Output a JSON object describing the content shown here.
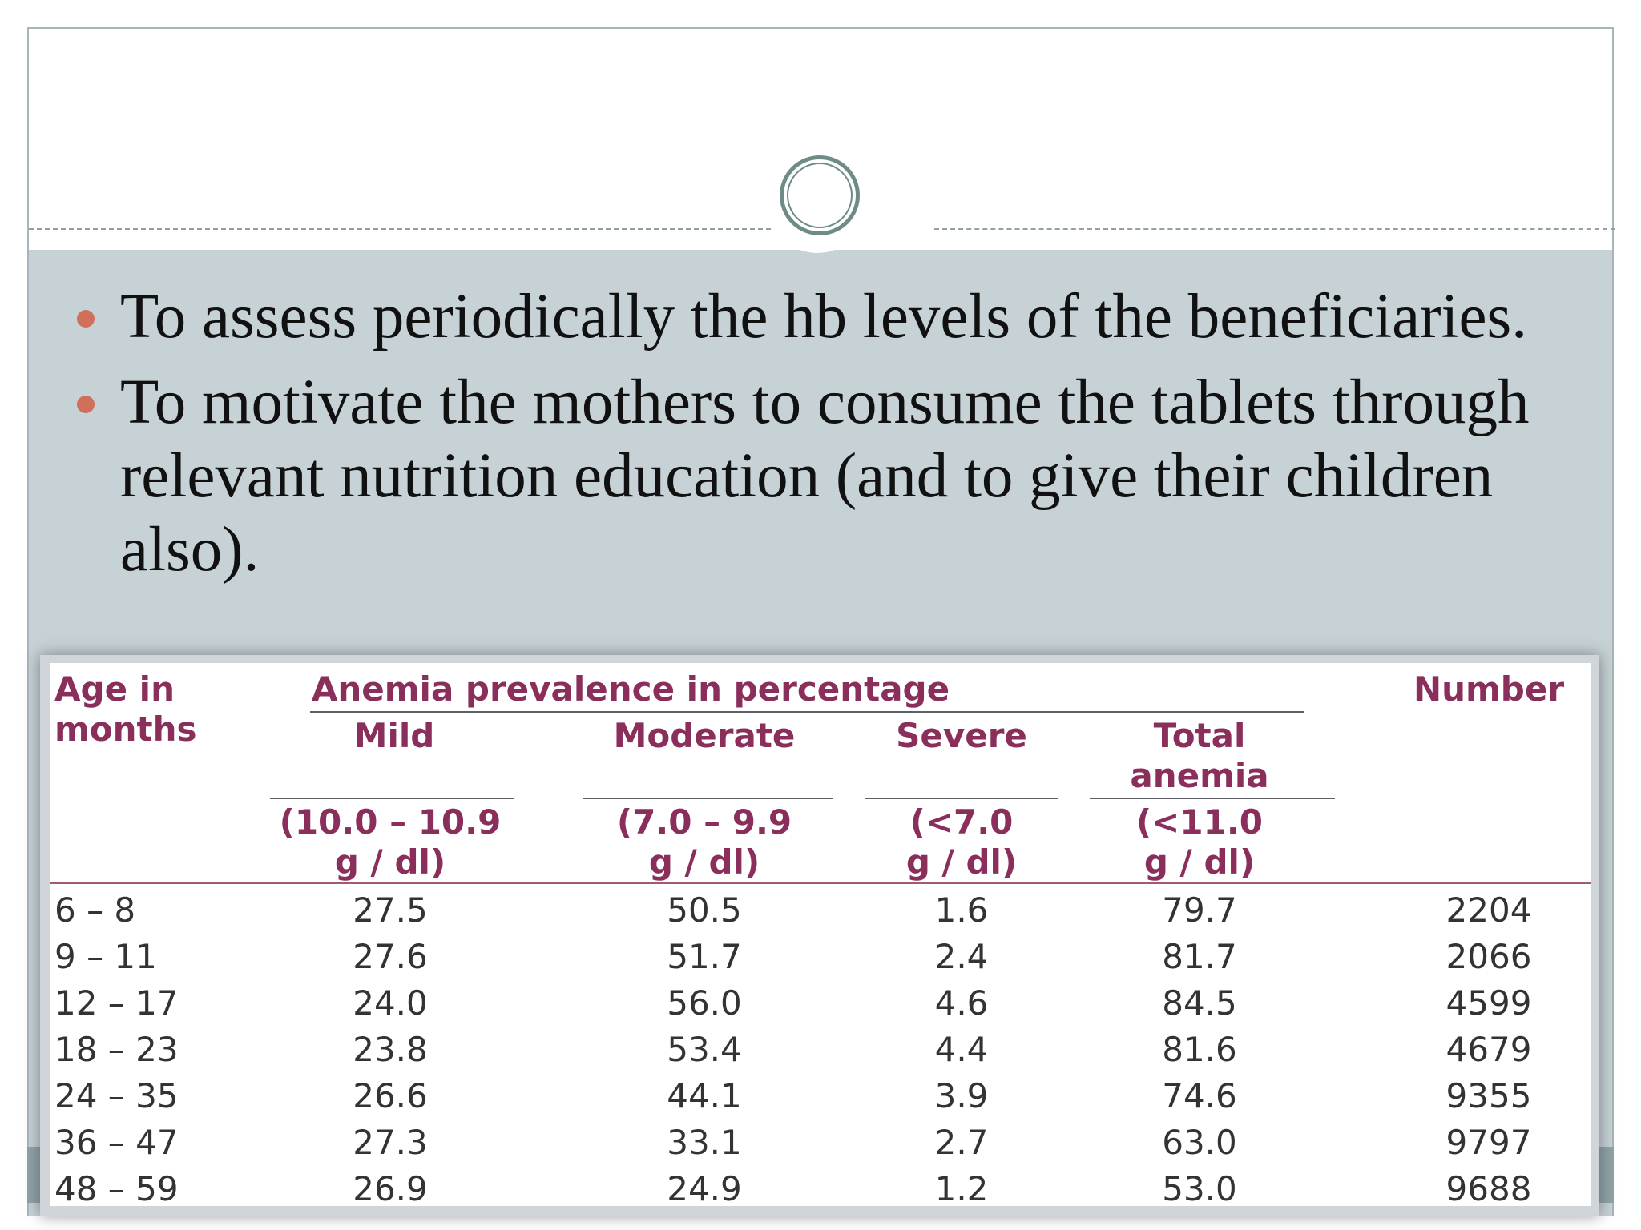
{
  "bullets": [
    "To assess periodically the hb levels of the beneficiaries.",
    "To motivate the mothers to consume the tablets through relevant nutrition education (and to give their children also)."
  ],
  "table": {
    "age_header_line1": "Age in",
    "age_header_line2": "months",
    "group_header": "Anemia prevalence in percentage",
    "number_header": "Number",
    "columns": [
      {
        "name": "Mild",
        "name2": "",
        "range1": "(10.0 – 10.9",
        "range2": "g / dl)"
      },
      {
        "name": "Moderate",
        "name2": "",
        "range1": "(7.0 – 9.9",
        "range2": "g / dl)"
      },
      {
        "name": "Severe",
        "name2": "",
        "range1": "(<7.0",
        "range2": "g / dl)"
      },
      {
        "name": "Total",
        "name2": "anemia",
        "range1": "(<11.0",
        "range2": "g / dl)"
      }
    ],
    "rows": [
      {
        "age": "6 – 8",
        "mild": "27.5",
        "moderate": "50.5",
        "severe": "1.6",
        "total": "79.7",
        "number": "2204"
      },
      {
        "age": "9 – 11",
        "mild": "27.6",
        "moderate": "51.7",
        "severe": "2.4",
        "total": "81.7",
        "number": "2066"
      },
      {
        "age": "12 – 17",
        "mild": "24.0",
        "moderate": "56.0",
        "severe": "4.6",
        "total": "84.5",
        "number": "4599"
      },
      {
        "age": "18 – 23",
        "mild": "23.8",
        "moderate": "53.4",
        "severe": "4.4",
        "total": "81.6",
        "number": "4679"
      },
      {
        "age": "24 – 35",
        "mild": "26.6",
        "moderate": "44.1",
        "severe": "3.9",
        "total": "74.6",
        "number": "9355"
      },
      {
        "age": "36 – 47",
        "mild": "27.3",
        "moderate": "33.1",
        "severe": "2.7",
        "total": "63.0",
        "number": "9797"
      },
      {
        "age": "48 – 59",
        "mild": "26.9",
        "moderate": "24.9",
        "severe": "1.2",
        "total": "53.0",
        "number": "9688"
      }
    ]
  },
  "colors": {
    "accent_bullet": "#d0705a",
    "content_background": "#c6d2d5",
    "table_header": "#8a2f5b",
    "circle_ring": "#6f8b87"
  }
}
